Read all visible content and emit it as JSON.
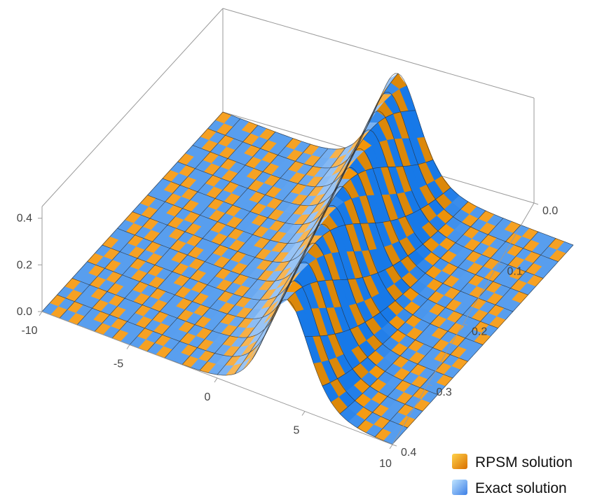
{
  "chart_data": {
    "type": "surface3d",
    "title": "",
    "x_axis": {
      "label": "",
      "range": [
        -10,
        10
      ],
      "ticks": [
        "-10",
        "-5",
        "0",
        "5",
        "10"
      ]
    },
    "t_axis": {
      "label": "",
      "range": [
        0,
        0.4
      ],
      "ticks": [
        "0.0",
        "0.1",
        "0.2",
        "0.3",
        "0.4"
      ]
    },
    "z_axis": {
      "label": "",
      "range": [
        0,
        0.45
      ],
      "ticks": [
        "0.0",
        "0.2",
        "0.4"
      ]
    },
    "surface": {
      "form": "a * sech^2(b * (x - c*t))",
      "amplitude": 0.45,
      "width_factor": 0.6,
      "speed": 10
    },
    "grid": {
      "x_lines": 21,
      "t_lines": 13
    },
    "legend": {
      "placement": "bottom-right",
      "items": [
        {
          "label": "RPSM solution",
          "color": "#f59a1e"
        },
        {
          "label": "Exact solution",
          "color": "#5b9cf0"
        }
      ]
    }
  }
}
